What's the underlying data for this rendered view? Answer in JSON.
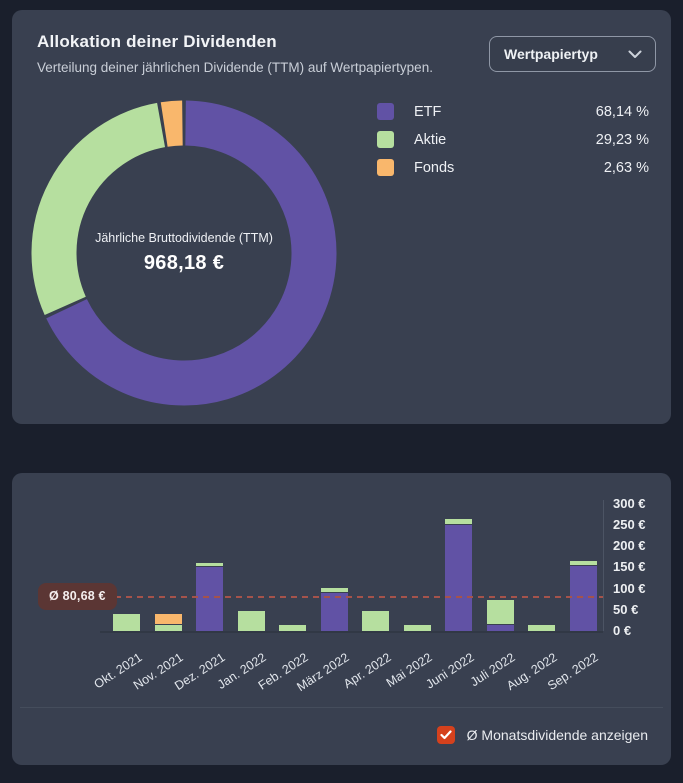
{
  "colors": {
    "page_bg": "#1a1f2c",
    "card_bg": "#394050",
    "etf": "#6152a5",
    "aktie": "#b6df9f",
    "fonds": "#f9b76c",
    "average_line": "#a5534b",
    "average_badge_bg": "#5b3634",
    "checkbox_bg": "#d5411d",
    "axis_line": "#4c5464",
    "divider": "#454d5c"
  },
  "allocation_card": {
    "title": "Allokation deiner Dividenden",
    "subtitle": "Verteilung deiner jährlichen Dividende (TTM) auf Wertpapiertypen.",
    "dropdown": {
      "value": "Wertpapiertyp"
    },
    "donut_center": {
      "label": "Jährliche Bruttodividende (TTM)",
      "value": "968,18 €"
    },
    "legend": [
      {
        "label": "ETF",
        "value": "68,14 %",
        "color_key": "etf"
      },
      {
        "label": "Aktie",
        "value": "29,23 %",
        "color_key": "aktie"
      },
      {
        "label": "Fonds",
        "value": "2,63 %",
        "color_key": "fonds"
      }
    ]
  },
  "monthly_card": {
    "average_badge": "Ø 80,68 €",
    "checkbox_label": "Ø Monatsdividende anzeigen",
    "checkbox_checked": true
  },
  "chart_data": [
    {
      "type": "pie",
      "subtype": "donut",
      "title": "Allokation deiner Dividenden",
      "labels": [
        "ETF",
        "Aktie",
        "Fonds"
      ],
      "values": [
        68.14,
        29.23,
        2.63
      ],
      "unit": "%",
      "color_keys": [
        "etf",
        "aktie",
        "fonds"
      ],
      "center_label": "Jährliche Bruttodividende (TTM)",
      "center_value": "968,18 €",
      "start_angle_deg": 0,
      "direction": "clockwise",
      "legend_position": "right"
    },
    {
      "type": "bar",
      "stacked": true,
      "categories": [
        "Okt. 2021",
        "Nov. 2021",
        "Dez. 2021",
        "Jan. 2022",
        "Feb. 2022",
        "März 2022",
        "Apr. 2022",
        "Mai 2022",
        "Juni 2022",
        "Juli 2022",
        "Aug. 2022",
        "Sep. 2022"
      ],
      "series": [
        {
          "name": "ETF",
          "color_key": "etf",
          "values": [
            0,
            0,
            150,
            0,
            0,
            89,
            0,
            0,
            250,
            15,
            0,
            153
          ]
        },
        {
          "name": "Aktie",
          "color_key": "aktie",
          "values": [
            40,
            13,
            9,
            47,
            15,
            9,
            48,
            14,
            11,
            55,
            15,
            10
          ]
        },
        {
          "name": "Fonds",
          "color_key": "fonds",
          "values": [
            0,
            25,
            0,
            0,
            0,
            0,
            0,
            0,
            0,
            0,
            0,
            0
          ]
        }
      ],
      "stack_order_bottom_to_top": [
        "ETF",
        "Aktie",
        "Fonds"
      ],
      "unit": "€",
      "average_value": 80.68,
      "average_label": "Ø 80,68 €",
      "y_ticks": [
        {
          "value": 300,
          "label": "300 €"
        },
        {
          "value": 250,
          "label": "250 €"
        },
        {
          "value": 200,
          "label": "200 €"
        },
        {
          "value": 150,
          "label": "150 €"
        },
        {
          "value": 100,
          "label": "100 €"
        },
        {
          "value": 50,
          "label": "50 €"
        },
        {
          "value": 0,
          "label": "0 €"
        }
      ],
      "ylim": [
        0,
        300
      ],
      "xlabel": "",
      "ylabel": "",
      "grid": false,
      "y_axis_position": "right",
      "legend_position": "none"
    }
  ]
}
